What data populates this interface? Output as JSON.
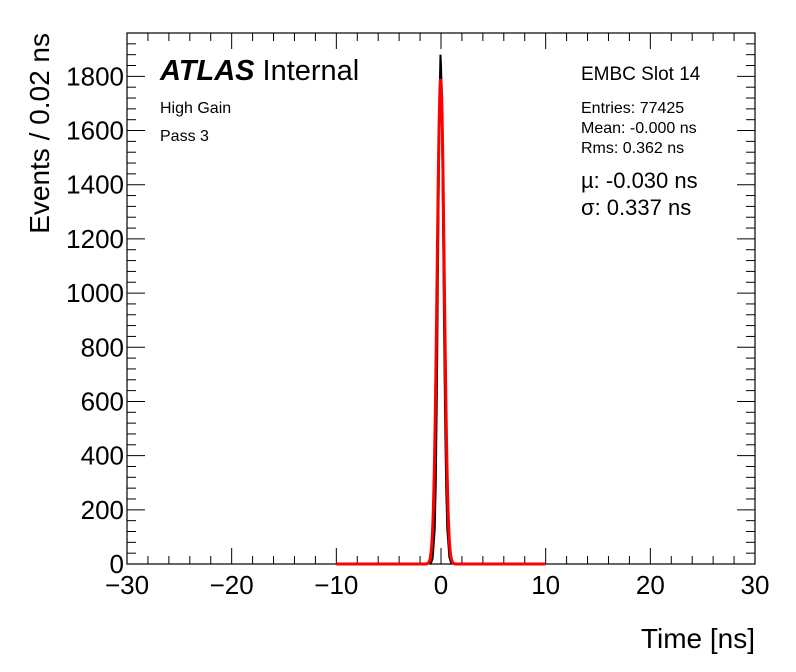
{
  "chart_data": {
    "type": "line",
    "title": "",
    "xlabel": "Time [ns]",
    "ylabel": "Events / 0.02 ns",
    "xlim": [
      -30,
      30
    ],
    "ylim": [
      0,
      1960
    ],
    "xticks": [
      -30,
      -20,
      -10,
      0,
      10,
      20,
      30
    ],
    "yticks": [
      0,
      200,
      400,
      600,
      800,
      1000,
      1200,
      1400,
      1600,
      1800
    ],
    "x_tick_labels": [
      "−30",
      "−20",
      "−10",
      "0",
      "10",
      "20",
      "30"
    ],
    "y_tick_labels": [
      "0",
      "200",
      "400",
      "600",
      "800",
      "1000",
      "1200",
      "1400",
      "1600",
      "1800"
    ],
    "series": [
      {
        "kind": "histogram",
        "color": "#000000",
        "x": [
          -1.0,
          -0.8,
          -0.6,
          -0.5,
          -0.4,
          -0.3,
          -0.2,
          -0.15,
          -0.1,
          -0.05,
          0.0,
          0.05,
          0.1,
          0.15,
          0.2,
          0.3,
          0.4,
          0.5,
          0.6,
          0.8,
          1.0
        ],
        "y": [
          0,
          20,
          130,
          300,
          620,
          1050,
          1460,
          1650,
          1790,
          1880,
          1840,
          1760,
          1620,
          1420,
          1240,
          850,
          520,
          280,
          130,
          25,
          0
        ]
      },
      {
        "kind": "gaussian-fit",
        "color": "#ff0000",
        "mean": -0.03,
        "sigma": 0.337,
        "amplitude": 1790,
        "range": [
          -10,
          10
        ]
      }
    ]
  },
  "labels": {
    "atlas": "ATLAS",
    "internal": "Internal",
    "gain": "High Gain",
    "pass": "Pass 3",
    "slot": "EMBC Slot 14",
    "entries": "Entries: 77425",
    "mean": "Mean: -0.000 ns",
    "rms": "Rms: 0.362 ns",
    "mu": "µ: -0.030 ns",
    "sigma": "σ: 0.337 ns"
  }
}
